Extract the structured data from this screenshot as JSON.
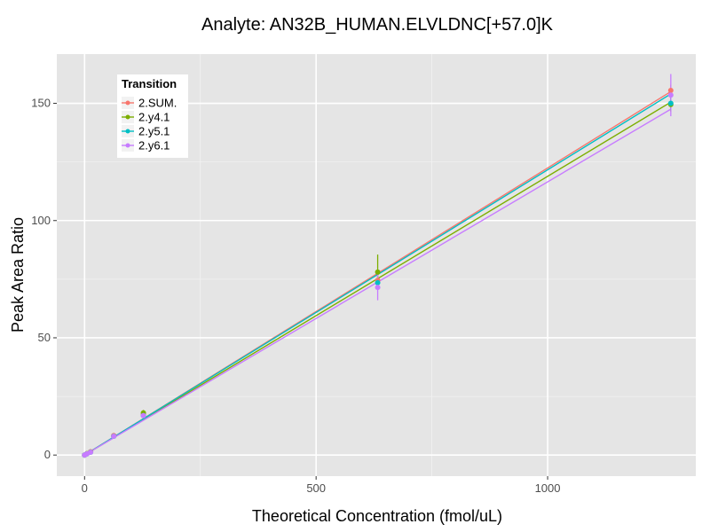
{
  "chart_data": {
    "type": "scatter",
    "title": "Analyte: AN32B_HUMAN.ELVLDNC[+57.0]K",
    "xlabel": "Theoretical Concentration (fmol/uL)",
    "ylabel": "Peak Area Ratio",
    "xlim": [
      -60,
      1320
    ],
    "ylim": [
      -9,
      171
    ],
    "x_ticks": [
      0,
      500,
      1000
    ],
    "y_ticks": [
      0,
      50,
      100,
      150
    ],
    "grid": true,
    "legend_title": "Transition",
    "legend_position": "top-left",
    "series": [
      {
        "name": "2.SUM.",
        "color": "#F8766D",
        "points": [
          {
            "x": 0,
            "y": 0,
            "err": 0.3
          },
          {
            "x": 5,
            "y": 0.6,
            "err": 0.3
          },
          {
            "x": 13,
            "y": 1.4,
            "err": 0.3
          },
          {
            "x": 63,
            "y": 8.3,
            "err": 0.6
          },
          {
            "x": 127,
            "y": 17.3,
            "err": 1.0
          },
          {
            "x": 633,
            "y": 74.5,
            "err": 2.0
          },
          {
            "x": 1266,
            "y": 155.5,
            "err": 2.5
          }
        ],
        "fit": {
          "x": [
            0,
            1266
          ],
          "y": [
            0,
            155
          ]
        }
      },
      {
        "name": "2.y4.1",
        "color": "#7CAE00",
        "points": [
          {
            "x": 0,
            "y": 0,
            "err": 0.3
          },
          {
            "x": 5,
            "y": 0.6,
            "err": 0.3
          },
          {
            "x": 13,
            "y": 1.3,
            "err": 0.3
          },
          {
            "x": 63,
            "y": 8.1,
            "err": 0.6
          },
          {
            "x": 127,
            "y": 18.0,
            "err": 1.2
          },
          {
            "x": 633,
            "y": 78.0,
            "err": 7.5
          },
          {
            "x": 1266,
            "y": 149.5,
            "err": 3.0
          }
        ],
        "fit": {
          "x": [
            0,
            1266
          ],
          "y": [
            0,
            150.5
          ]
        }
      },
      {
        "name": "2.y5.1",
        "color": "#00BFC4",
        "points": [
          {
            "x": 0,
            "y": 0,
            "err": 0.3
          },
          {
            "x": 5,
            "y": 0.5,
            "err": 0.3
          },
          {
            "x": 13,
            "y": 1.2,
            "err": 0.3
          },
          {
            "x": 63,
            "y": 8.0,
            "err": 0.6
          },
          {
            "x": 127,
            "y": 16.8,
            "err": 1.0
          },
          {
            "x": 633,
            "y": 73.5,
            "err": 2.0
          },
          {
            "x": 1266,
            "y": 150.0,
            "err": 2.5
          }
        ],
        "fit": {
          "x": [
            0,
            1266
          ],
          "y": [
            0,
            154
          ]
        }
      },
      {
        "name": "2.y6.1",
        "color": "#C77CFF",
        "points": [
          {
            "x": 0,
            "y": 0,
            "err": 0.3
          },
          {
            "x": 5,
            "y": 0.5,
            "err": 0.3
          },
          {
            "x": 13,
            "y": 1.2,
            "err": 0.3
          },
          {
            "x": 63,
            "y": 8.0,
            "err": 0.6
          },
          {
            "x": 127,
            "y": 16.8,
            "err": 1.0
          },
          {
            "x": 633,
            "y": 71.5,
            "err": 5.5
          },
          {
            "x": 1266,
            "y": 153.5,
            "err": 9.0
          }
        ],
        "fit": {
          "x": [
            0,
            1266
          ],
          "y": [
            0,
            147.5
          ]
        }
      }
    ]
  }
}
